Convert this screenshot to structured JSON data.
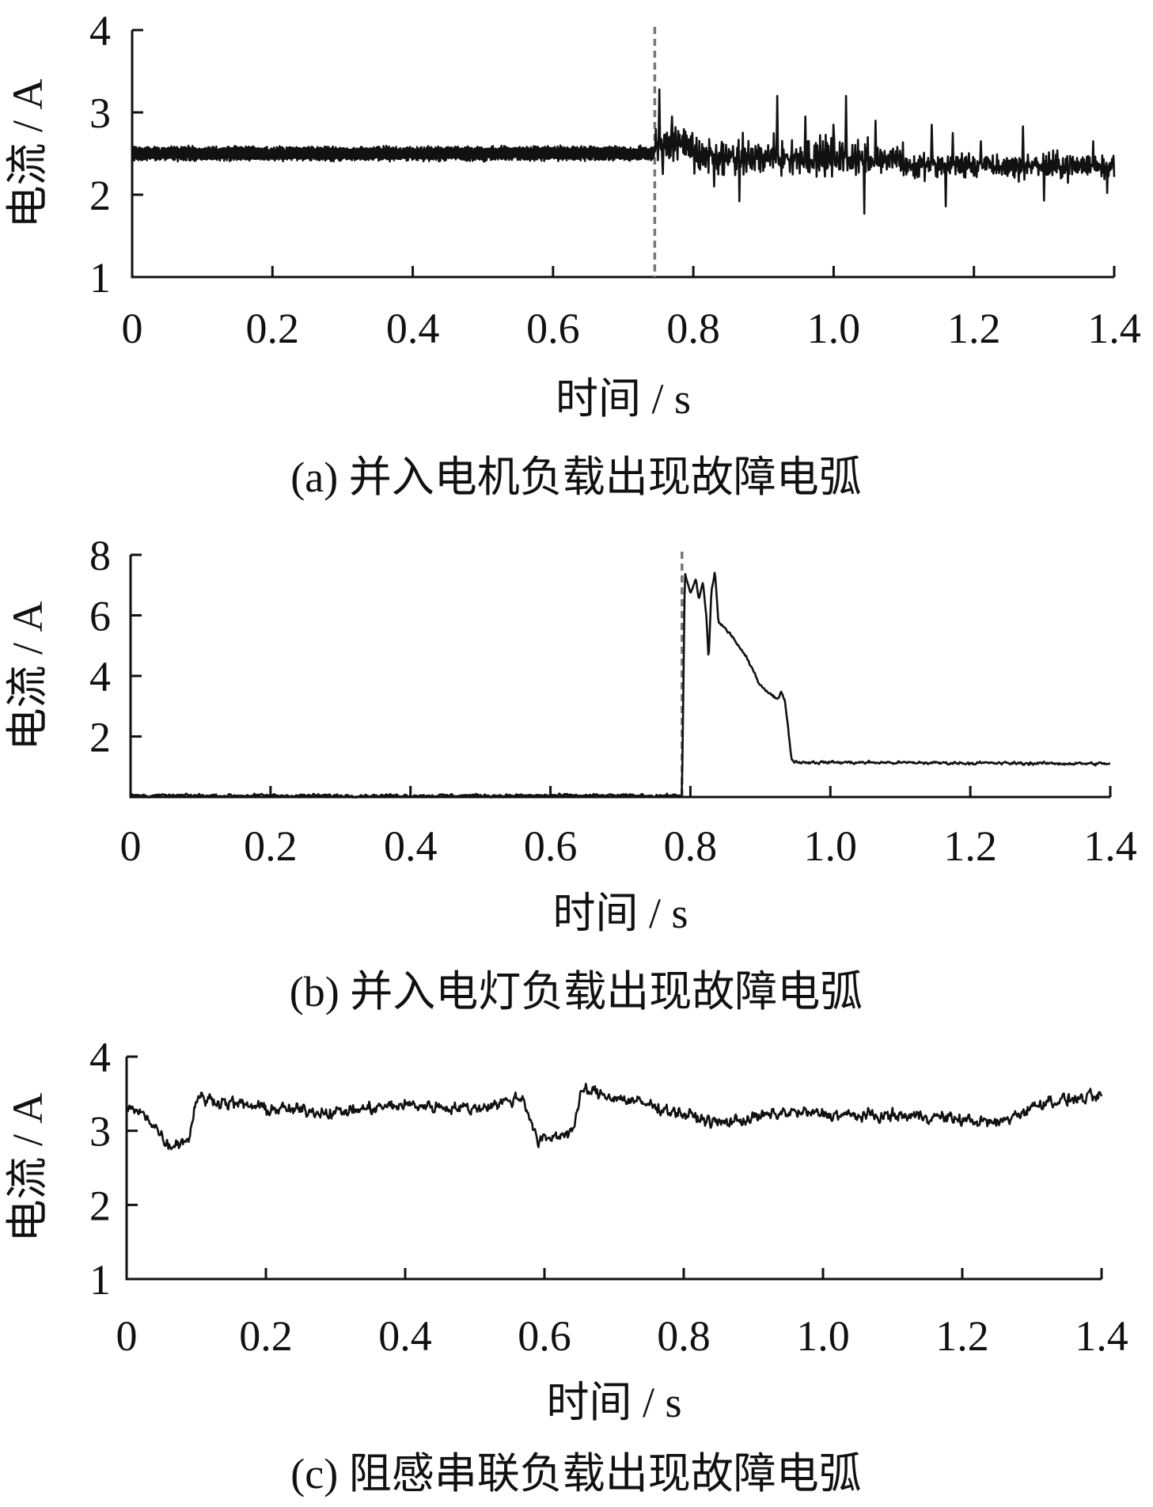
{
  "chart_data": [
    {
      "type": "line",
      "caption": "(a)  并入电机负载出现故障电弧",
      "xlabel": "时间 / s",
      "ylabel": "电流 / A",
      "xlim": [
        0,
        1.4
      ],
      "ylim": [
        1,
        4
      ],
      "xticks": [
        0,
        0.2,
        0.4,
        0.6,
        0.8,
        1.0,
        1.2,
        1.4
      ],
      "xtick_labels": [
        "0",
        "0.2",
        "0.4",
        "0.6",
        "0.8",
        "1.0",
        "1.2",
        "1.4"
      ],
      "yticks": [
        1,
        2,
        3,
        4
      ],
      "ytick_labels": [
        "1",
        "2",
        "3",
        "4"
      ],
      "fault_onset": 0.745,
      "series": [
        {
          "pattern": [
            {
              "x_start": 0.0,
              "x_end": 0.745,
              "mean": 2.5,
              "amplitude": 0.08,
              "noise": 0.03
            },
            {
              "x_start": 0.745,
              "x_end": 0.8,
              "mean": 2.62,
              "amplitude": 0.12,
              "noise": 0.18
            },
            {
              "x_start": 0.8,
              "x_end": 1.1,
              "mean": 2.45,
              "amplitude": 0.1,
              "noise": 0.25
            },
            {
              "x_start": 1.1,
              "x_end": 1.4,
              "mean": 2.35,
              "amplitude": 0.08,
              "noise": 0.15
            }
          ],
          "spikes": [
            {
              "x": 0.752,
              "y": 3.28
            },
            {
              "x": 0.757,
              "y": 2.25
            },
            {
              "x": 0.77,
              "y": 2.95
            },
            {
              "x": 0.83,
              "y": 2.1
            },
            {
              "x": 0.866,
              "y": 1.92
            },
            {
              "x": 0.92,
              "y": 3.2
            },
            {
              "x": 0.96,
              "y": 2.95
            },
            {
              "x": 1.0,
              "y": 2.85
            },
            {
              "x": 1.018,
              "y": 3.2
            },
            {
              "x": 1.044,
              "y": 1.77
            },
            {
              "x": 1.06,
              "y": 2.9
            },
            {
              "x": 1.14,
              "y": 2.85
            },
            {
              "x": 1.16,
              "y": 1.86
            },
            {
              "x": 1.17,
              "y": 2.75
            },
            {
              "x": 1.21,
              "y": 2.65
            },
            {
              "x": 1.27,
              "y": 2.83
            },
            {
              "x": 1.3,
              "y": 1.93
            },
            {
              "x": 1.37,
              "y": 2.65
            },
            {
              "x": 1.39,
              "y": 2.02
            }
          ],
          "sample_count": 1400
        }
      ]
    },
    {
      "type": "line",
      "caption": "(b)  并入电灯负载出现故障电弧",
      "xlabel": "时间 / s",
      "ylabel": "电流 / A",
      "xlim": [
        0,
        1.4
      ],
      "ylim": [
        0,
        8
      ],
      "xticks": [
        0,
        0.2,
        0.4,
        0.6,
        0.8,
        1.0,
        1.2,
        1.4
      ],
      "xtick_labels": [
        "0",
        "0.2",
        "0.4",
        "0.6",
        "0.8",
        "1.0",
        "1.2",
        "1.4"
      ],
      "yticks": [
        2,
        4,
        6,
        8
      ],
      "ytick_labels": [
        "2",
        "4",
        "6",
        "8"
      ],
      "fault_onset": 0.788,
      "series": [
        {
          "keypoints": [
            [
              0.0,
              0.05
            ],
            [
              0.788,
              0.05
            ],
            [
              0.792,
              7.4
            ],
            [
              0.8,
              6.7
            ],
            [
              0.808,
              7.2
            ],
            [
              0.812,
              6.5
            ],
            [
              0.818,
              7.1
            ],
            [
              0.823,
              5.9
            ],
            [
              0.826,
              4.5
            ],
            [
              0.83,
              6.8
            ],
            [
              0.835,
              7.45
            ],
            [
              0.84,
              5.8
            ],
            [
              0.86,
              5.3
            ],
            [
              0.88,
              4.6
            ],
            [
              0.9,
              3.7
            ],
            [
              0.925,
              3.2
            ],
            [
              0.93,
              3.5
            ],
            [
              0.935,
              3.2
            ],
            [
              0.945,
              1.2
            ],
            [
              0.955,
              1.15
            ],
            [
              1.4,
              1.1
            ]
          ],
          "noise": 0.06,
          "sample_count": 1400
        }
      ]
    },
    {
      "type": "line",
      "caption": "(c)  阻感串联负载出现故障电弧",
      "xlabel": "时间 / s",
      "ylabel": "电流 / A",
      "xlim": [
        0,
        1.4
      ],
      "ylim": [
        1,
        4
      ],
      "xticks": [
        0,
        0.2,
        0.4,
        0.6,
        0.8,
        1.0,
        1.2,
        1.4
      ],
      "xtick_labels": [
        "0",
        "0.2",
        "0.4",
        "0.6",
        "0.8",
        "1.0",
        "1.2",
        "1.4"
      ],
      "yticks": [
        1,
        2,
        3,
        4
      ],
      "ytick_labels": [
        "1",
        "2",
        "3",
        "4"
      ],
      "series": [
        {
          "keypoints": [
            [
              0.0,
              3.3
            ],
            [
              0.03,
              3.2
            ],
            [
              0.06,
              2.8
            ],
            [
              0.09,
              2.9
            ],
            [
              0.1,
              3.45
            ],
            [
              0.2,
              3.3
            ],
            [
              0.3,
              3.25
            ],
            [
              0.4,
              3.35
            ],
            [
              0.5,
              3.3
            ],
            [
              0.57,
              3.45
            ],
            [
              0.59,
              2.85
            ],
            [
              0.64,
              3.0
            ],
            [
              0.655,
              3.55
            ],
            [
              0.75,
              3.35
            ],
            [
              0.85,
              3.1
            ],
            [
              0.95,
              3.25
            ],
            [
              1.05,
              3.2
            ],
            [
              1.15,
              3.2
            ],
            [
              1.25,
              3.1
            ],
            [
              1.32,
              3.4
            ],
            [
              1.4,
              3.45
            ]
          ],
          "noise": 0.1,
          "sample_count": 1400
        }
      ]
    }
  ]
}
